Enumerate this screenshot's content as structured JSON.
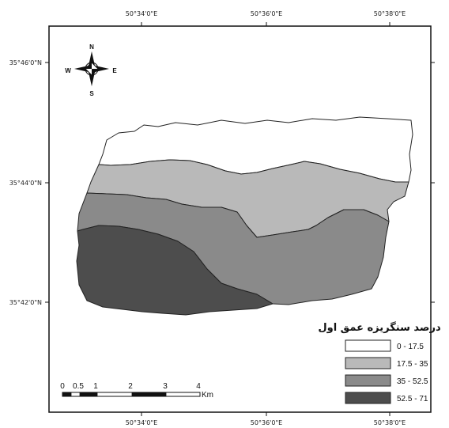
{
  "map": {
    "x_ticks": [
      "50°34'0\"E",
      "50°36'0\"E",
      "50°38'0\"E"
    ],
    "y_ticks": [
      "35°46'0\"N",
      "35°44'0\"N",
      "35°42'0\"N"
    ],
    "compass": {
      "n": "N",
      "s": "S",
      "e": "E",
      "w": "W"
    },
    "legend": {
      "title": "درصد سنگریزه عمق اول",
      "items": [
        {
          "label": "0 - 17.5",
          "color": "#ffffff"
        },
        {
          "label": "17.5 - 35",
          "color": "#b9b9b9"
        },
        {
          "label": "35 - 52.5",
          "color": "#8a8a8a"
        },
        {
          "label": "52.5 - 71",
          "color": "#4d4d4d"
        }
      ]
    },
    "scale_bar": {
      "ticks": [
        "0",
        "0.5",
        "1",
        "2",
        "3",
        "4"
      ],
      "unit": "Km"
    }
  }
}
